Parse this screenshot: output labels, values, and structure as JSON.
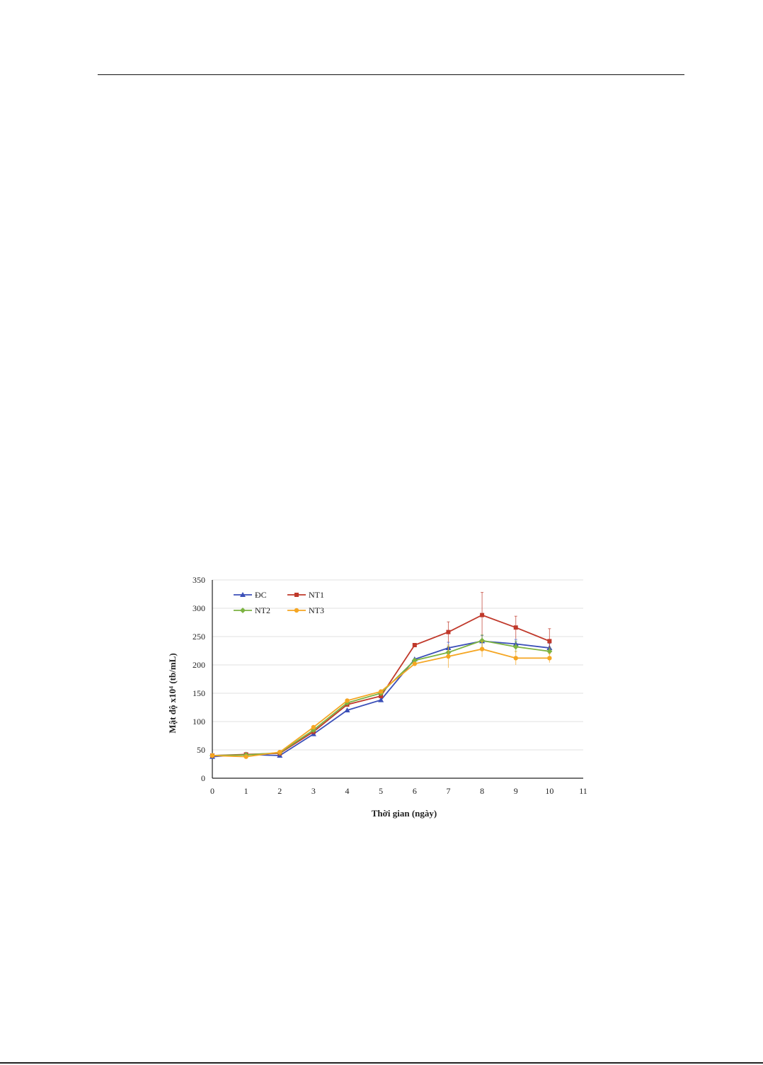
{
  "chart_data": {
    "type": "line",
    "xlabel": "Thời gian (ngày)",
    "ylabel": "Mật độ x10⁴ (tb/mL)",
    "xlim": [
      0,
      11
    ],
    "ylim": [
      0,
      350
    ],
    "xticks": [
      "0",
      "1",
      "2",
      "3",
      "4",
      "5",
      "6",
      "7",
      "8",
      "9",
      "10",
      "11"
    ],
    "yticks": [
      "0",
      "50",
      "100",
      "150",
      "200",
      "250",
      "300",
      "350"
    ],
    "grid": "horizontal",
    "legend_position": "top-left",
    "x": [
      0,
      1,
      2,
      3,
      4,
      5,
      6,
      7,
      8,
      9,
      10
    ],
    "series": [
      {
        "name": "ĐC",
        "color": "#3b4fb8",
        "marker": "triangle",
        "values": [
          38,
          42,
          40,
          78,
          120,
          138,
          210,
          230,
          242,
          237,
          230
        ],
        "errors": [
          0,
          0,
          0,
          0,
          0,
          0,
          0,
          10,
          10,
          8,
          8
        ]
      },
      {
        "name": "NT1",
        "color": "#c0392b",
        "marker": "square",
        "values": [
          40,
          42,
          44,
          82,
          130,
          145,
          235,
          258,
          288,
          266,
          242
        ],
        "errors": [
          0,
          0,
          0,
          0,
          0,
          0,
          0,
          18,
          40,
          20,
          22
        ]
      },
      {
        "name": "NT2",
        "color": "#7cb342",
        "marker": "diamond",
        "values": [
          40,
          41,
          45,
          85,
          133,
          150,
          208,
          222,
          243,
          232,
          224
        ],
        "errors": [
          0,
          0,
          0,
          0,
          0,
          0,
          0,
          10,
          10,
          10,
          6
        ]
      },
      {
        "name": "NT3",
        "color": "#f5a623",
        "marker": "circle",
        "values": [
          40,
          38,
          46,
          90,
          137,
          153,
          202,
          215,
          228,
          212,
          212
        ],
        "errors": [
          0,
          0,
          0,
          0,
          0,
          0,
          0,
          20,
          14,
          12,
          8
        ]
      }
    ]
  }
}
